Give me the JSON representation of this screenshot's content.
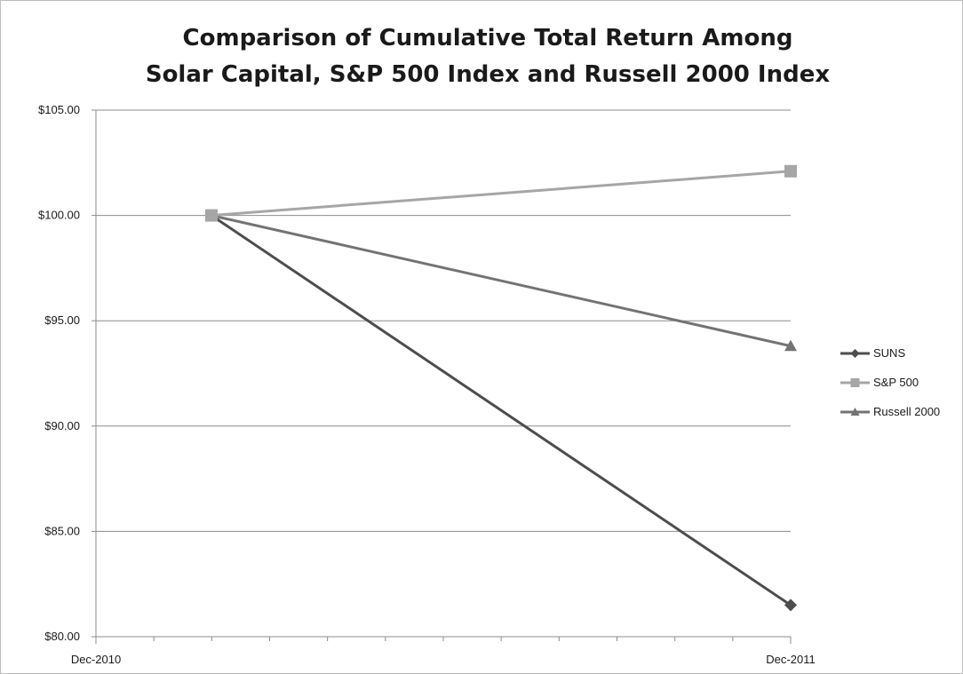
{
  "chart_data": {
    "type": "line",
    "title_lines": [
      "Comparison of Cumulative Total Return Among",
      "Solar Capital, S&P 500 Index and Russell 2000 Index"
    ],
    "x_tick_labels": [
      "Dec-2010",
      "Dec-2011"
    ],
    "y_tick_labels": [
      "$80.00",
      "$85.00",
      "$90.00",
      "$95.00",
      "$100.00",
      "$105.00"
    ],
    "y_ticks": [
      80,
      85,
      90,
      95,
      100,
      105
    ],
    "ylim": [
      80,
      105
    ],
    "grid": true,
    "legend_position": "right",
    "series": [
      {
        "name": "SUNS",
        "marker": "diamond",
        "color": "#4d4d4d",
        "points": [
          {
            "x": "Dec-2010",
            "y": 100.0
          },
          {
            "x": "Dec-2011",
            "y": 81.5
          }
        ]
      },
      {
        "name": "S&P 500",
        "marker": "square",
        "color": "#a6a6a6",
        "points": [
          {
            "x": "Dec-2010",
            "y": 100.0
          },
          {
            "x": "Dec-2011",
            "y": 102.1
          }
        ]
      },
      {
        "name": "Russell 2000",
        "marker": "triangle",
        "color": "#737373",
        "points": [
          {
            "x": "Dec-2010",
            "y": 100.0
          },
          {
            "x": "Dec-2011",
            "y": 93.8
          }
        ]
      }
    ]
  }
}
